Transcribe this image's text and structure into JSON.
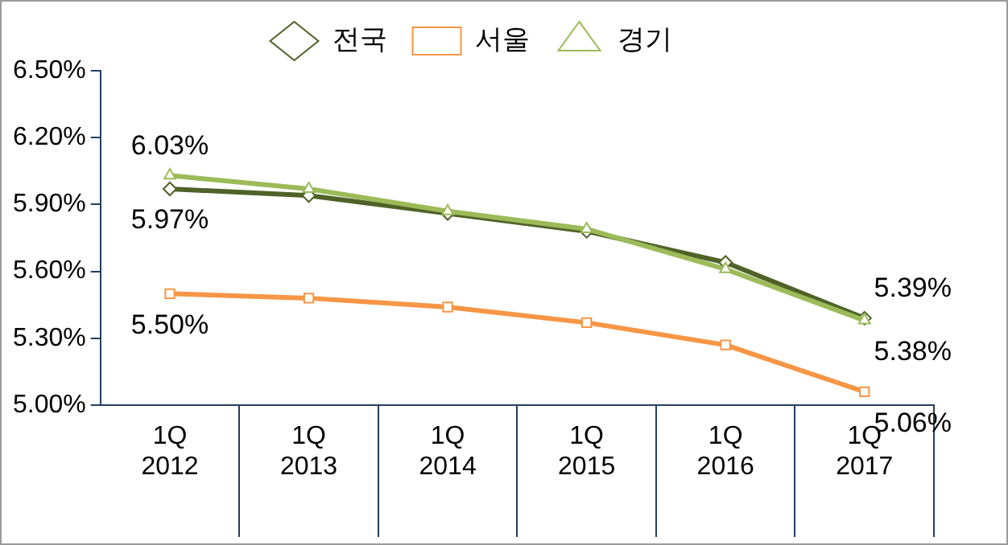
{
  "chart_data": {
    "type": "line",
    "categories": [
      "1Q 2012",
      "1Q 2013",
      "1Q 2014",
      "1Q 2015",
      "1Q 2016",
      "1Q 2017"
    ],
    "series": [
      {
        "name": "전국",
        "color": "#4f6228",
        "marker": "diamond",
        "values": [
          5.97,
          5.94,
          5.86,
          5.78,
          5.64,
          5.39
        ],
        "value_labels": [
          "5.97%",
          null,
          null,
          null,
          null,
          "5.39%"
        ]
      },
      {
        "name": "서울",
        "color": "#f79646",
        "marker": "square",
        "values": [
          5.5,
          5.48,
          5.44,
          5.37,
          5.27,
          5.06
        ],
        "value_labels": [
          "5.50%",
          null,
          null,
          null,
          null,
          "5.06%"
        ]
      },
      {
        "name": "경기",
        "color": "#9bbb59",
        "marker": "triangle",
        "values": [
          6.03,
          5.97,
          5.87,
          5.79,
          5.61,
          5.38
        ],
        "value_labels": [
          "6.03%",
          null,
          null,
          null,
          null,
          "5.38%"
        ]
      }
    ],
    "ylim": [
      5.0,
      6.5
    ],
    "yticks": [
      {
        "value": 5.0,
        "label": "5.00%"
      },
      {
        "value": 5.3,
        "label": "5.30%"
      },
      {
        "value": 5.6,
        "label": "5.60%"
      },
      {
        "value": 5.9,
        "label": "5.90%"
      },
      {
        "value": 6.2,
        "label": "6.20%"
      },
      {
        "value": 6.5,
        "label": "6.50%"
      }
    ],
    "grid": false,
    "legend": "top"
  }
}
